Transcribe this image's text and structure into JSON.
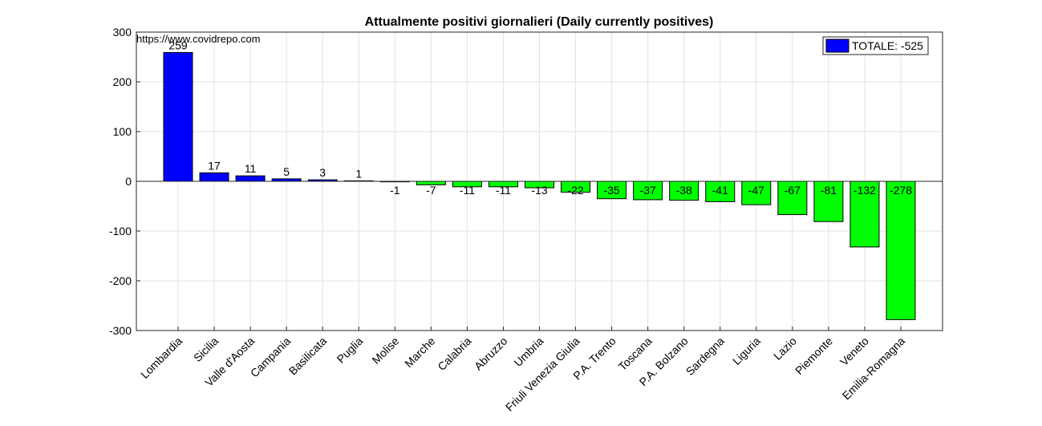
{
  "chart_data": {
    "type": "bar",
    "title": "Attualmente positivi giornalieri (Daily currently positives)",
    "annotation": "https://www.covidrepo.com",
    "categories": [
      "Lombardia",
      "Sicilia",
      "Valle d'Aosta",
      "Campania",
      "Basilicata",
      "Puglia",
      "Molise",
      "Marche",
      "Calabria",
      "Abruzzo",
      "Umbria",
      "Friuli Venezia Giulia",
      "P.A. Trento",
      "Toscana",
      "P.A. Bolzano",
      "Sardegna",
      "Liguria",
      "Lazio",
      "Piemonte",
      "Veneto",
      "Emilia-Romagna"
    ],
    "values": [
      259,
      17,
      11,
      5,
      3,
      1,
      -1,
      -7,
      -11,
      -11,
      -13,
      -22,
      -35,
      -37,
      -38,
      -41,
      -47,
      -67,
      -81,
      -132,
      -278
    ],
    "value_labels": [
      "259",
      "17",
      "11",
      "5",
      "3",
      "1",
      "-1",
      "-7",
      "-11",
      "-11",
      "-13",
      "-22",
      "-35",
      "-37",
      "-38",
      "-41",
      "-47",
      "-67",
      "-81",
      "-132",
      "-278"
    ],
    "ylim": [
      -300,
      300
    ],
    "yticks": [
      300,
      200,
      100,
      0,
      -100,
      -200,
      -300
    ],
    "grid": true,
    "positive_color": "#0000ff",
    "negative_color": "#00ff00",
    "legend": {
      "label": "TOTALE: -525",
      "color": "#0000ff",
      "position": "top-right"
    }
  }
}
